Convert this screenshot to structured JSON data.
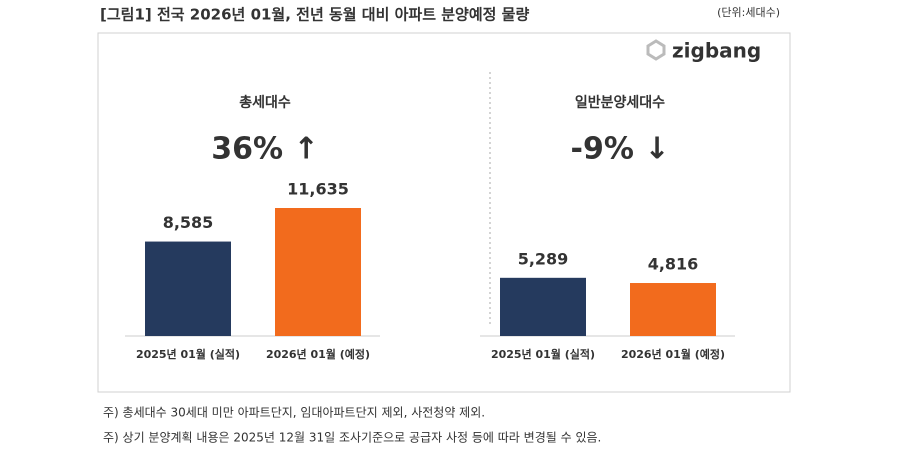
{
  "header": {
    "title": "[그림1] 전국 2026년 01월, 전년 동월 대비 아파트 분양예정 물량",
    "unit": "(단위:세대수)",
    "logo": "zigbang"
  },
  "chart_data": [
    {
      "type": "bar",
      "title": "총세대수",
      "annotation": "36% ↑",
      "categories": [
        "2025년 01월 (실적)",
        "2026년 01월 (예정)"
      ],
      "values": [
        8585,
        11635
      ],
      "value_labels": [
        "8,585",
        "11,635"
      ],
      "colors": [
        "#253a5e",
        "#f26b1d"
      ]
    },
    {
      "type": "bar",
      "title": "일반분양세대수",
      "annotation": "-9% ↓",
      "categories": [
        "2025년 01월 (실적)",
        "2026년 01월 (예정)"
      ],
      "values": [
        5289,
        4816
      ],
      "value_labels": [
        "5,289",
        "4,816"
      ],
      "colors": [
        "#253a5e",
        "#f26b1d"
      ]
    }
  ],
  "notes": [
    "주) 총세대수 30세대 미만 아파트단지, 임대아파트단지 제외, 사전청약 제외.",
    "주) 상기 분양계획 내용은 2025년 12월 31일 조사기준으로 공급자 사정 등에 따라 변경될 수 있음."
  ]
}
